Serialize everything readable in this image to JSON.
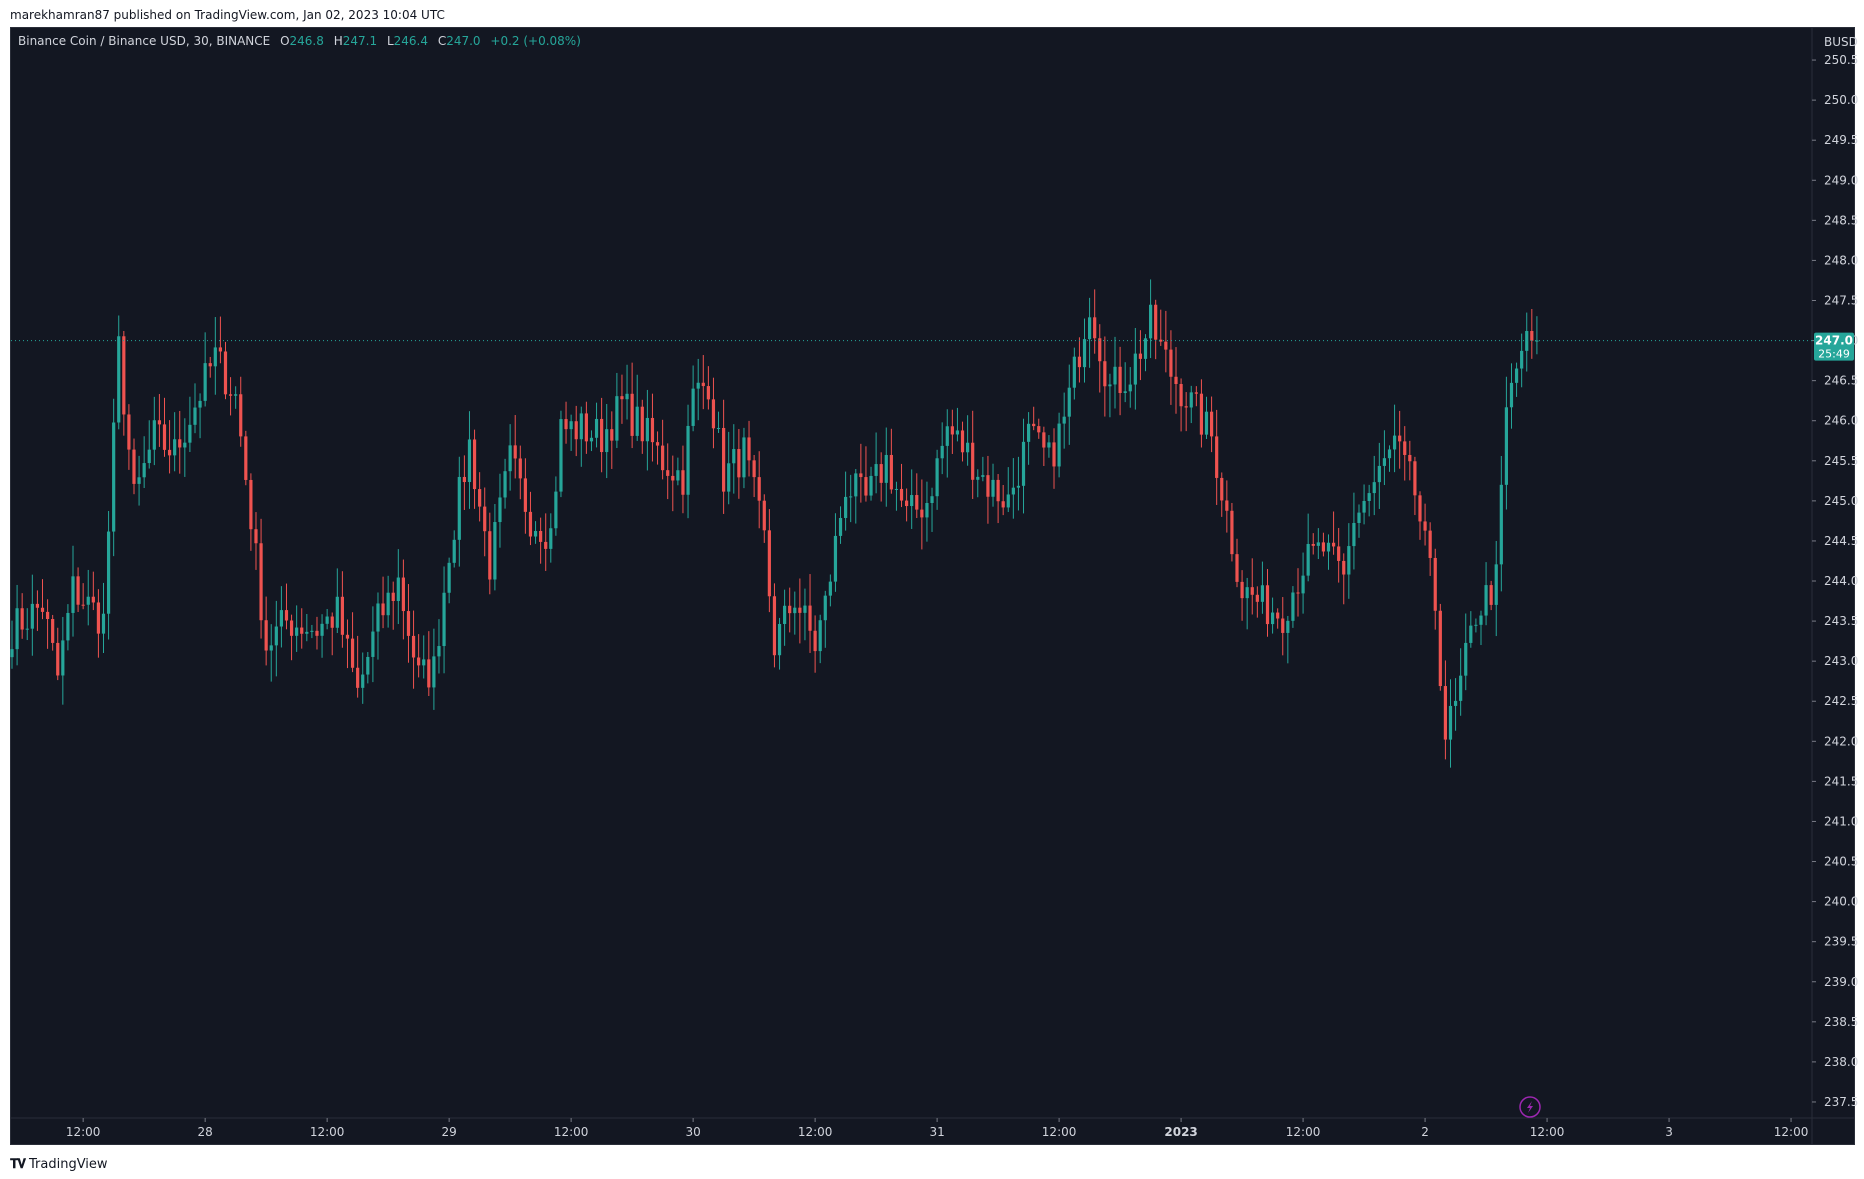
{
  "published": "marekhamran87 published on TradingView.com, Jan 02, 2023 10:04 UTC",
  "footer": {
    "brand": "TradingView",
    "logo_icon": "tradingview-logo-icon"
  },
  "legend": {
    "symbol": "Binance Coin / Binance USD, 30, BINANCE",
    "o_label": "O",
    "o_value": "246.8",
    "h_label": "H",
    "h_value": "247.1",
    "l_label": "L",
    "l_value": "246.4",
    "c_label": "C",
    "c_value": "247.0",
    "change": "+0.2 (+0.08%)"
  },
  "colors": {
    "up": "#26a69a",
    "down": "#ef5350",
    "background": "#131722",
    "text": "#d1d4dc",
    "axis_border": "#2a2e39",
    "lightning": "#9c27b0"
  },
  "chart_data": {
    "type": "candlestick",
    "currency": "BUSD",
    "y_ticks": [
      "250.5",
      "250.0",
      "249.5",
      "249.0",
      "248.5",
      "248.0",
      "247.5",
      "247.0",
      "246.5",
      "246.0",
      "245.5",
      "245.0",
      "244.5",
      "244.0",
      "243.5",
      "243.0",
      "242.5",
      "242.0",
      "241.5",
      "241.0",
      "240.5",
      "240.0",
      "239.5",
      "239.0",
      "238.5",
      "238.0",
      "237.5"
    ],
    "ylim": [
      237.3,
      250.9
    ],
    "x_ticks": [
      "12:00",
      "28",
      "12:00",
      "29",
      "12:00",
      "30",
      "12:00",
      "31",
      "12:00",
      "2023",
      "12:00",
      "2",
      "12:00",
      "3",
      "12:00"
    ],
    "x_tick_index": [
      14,
      38,
      62,
      86,
      110,
      134,
      158,
      182,
      206,
      230,
      254,
      278,
      302,
      326,
      350
    ],
    "last_price": "247.0",
    "countdown": "25:49",
    "last_value": 247.0,
    "candle_interval": "30",
    "anchors": [
      [
        0,
        243.4
      ],
      [
        6,
        243.7
      ],
      [
        9,
        242.8
      ],
      [
        12,
        243.9
      ],
      [
        18,
        243.5
      ],
      [
        21,
        246.9
      ],
      [
        24,
        245.0
      ],
      [
        28,
        245.8
      ],
      [
        32,
        245.6
      ],
      [
        36,
        246.2
      ],
      [
        40,
        246.8
      ],
      [
        44,
        246.3
      ],
      [
        47,
        244.8
      ],
      [
        50,
        243.2
      ],
      [
        54,
        243.5
      ],
      [
        60,
        243.4
      ],
      [
        64,
        243.6
      ],
      [
        68,
        242.6
      ],
      [
        72,
        243.5
      ],
      [
        76,
        244.0
      ],
      [
        80,
        242.8
      ],
      [
        83,
        242.9
      ],
      [
        86,
        244.4
      ],
      [
        90,
        245.7
      ],
      [
        94,
        244.2
      ],
      [
        98,
        245.5
      ],
      [
        102,
        244.8
      ],
      [
        106,
        244.6
      ],
      [
        108,
        245.9
      ],
      [
        112,
        245.9
      ],
      [
        116,
        245.8
      ],
      [
        120,
        246.2
      ],
      [
        124,
        245.9
      ],
      [
        128,
        245.5
      ],
      [
        132,
        245.3
      ],
      [
        134,
        246.3
      ],
      [
        137,
        246.5
      ],
      [
        140,
        245.3
      ],
      [
        144,
        245.6
      ],
      [
        148,
        244.5
      ],
      [
        150,
        243.2
      ],
      [
        154,
        243.8
      ],
      [
        158,
        243.2
      ],
      [
        160,
        243.7
      ],
      [
        164,
        245.2
      ],
      [
        168,
        245.0
      ],
      [
        172,
        245.5
      ],
      [
        176,
        244.8
      ],
      [
        180,
        245.0
      ],
      [
        184,
        245.9
      ],
      [
        188,
        245.6
      ],
      [
        192,
        245.2
      ],
      [
        196,
        245.0
      ],
      [
        200,
        245.8
      ],
      [
        204,
        245.5
      ],
      [
        207,
        246.0
      ],
      [
        210,
        246.9
      ],
      [
        212,
        247.5
      ],
      [
        216,
        246.4
      ],
      [
        220,
        246.6
      ],
      [
        224,
        247.2
      ],
      [
        228,
        246.6
      ],
      [
        232,
        246.2
      ],
      [
        236,
        245.8
      ],
      [
        240,
        244.5
      ],
      [
        242,
        243.9
      ],
      [
        246,
        243.7
      ],
      [
        250,
        243.6
      ],
      [
        254,
        244.2
      ],
      [
        258,
        244.4
      ],
      [
        262,
        244.0
      ],
      [
        264,
        244.8
      ],
      [
        268,
        245.2
      ],
      [
        272,
        245.7
      ],
      [
        276,
        245.1
      ],
      [
        280,
        243.7
      ],
      [
        282,
        242.1
      ],
      [
        284,
        242.4
      ],
      [
        288,
        243.6
      ],
      [
        292,
        244.0
      ],
      [
        294,
        246.1
      ],
      [
        297,
        246.9
      ],
      [
        300,
        247.0
      ]
    ]
  }
}
